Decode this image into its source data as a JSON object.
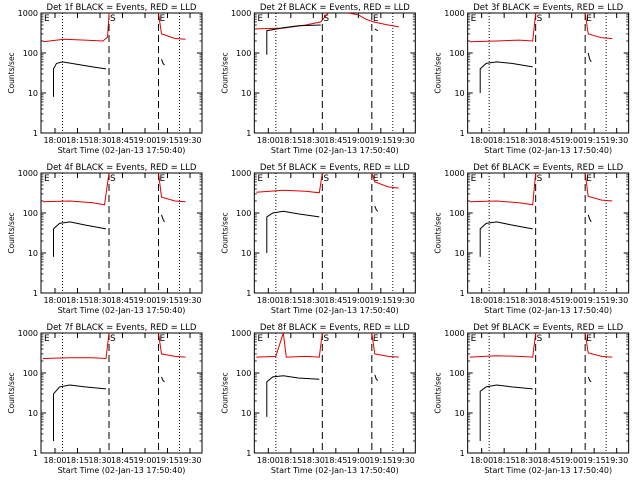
{
  "page": {
    "title": ""
  },
  "colors": {
    "events": "#000000",
    "lld": "#e00000",
    "axis": "#000000",
    "background": "#ffffff"
  },
  "common": {
    "ylabel": "Counts/sec",
    "xlabel": "Start Time (02-Jan-13 17:50:40)",
    "x_ticks": [
      "18:00",
      "18:15",
      "18:30",
      "18:45",
      "19:00",
      "19:15",
      "19:30"
    ],
    "y_ticks": [
      "1",
      "10",
      "100",
      "1000"
    ],
    "y_scale": "log",
    "ylim": [
      1,
      1000
    ],
    "xlim_minutes": [
      "17:50:40",
      "19:38:00"
    ],
    "markers": [
      "E",
      "S",
      "E"
    ]
  },
  "chart_data": [
    {
      "type": "line",
      "title": "Det 1f BLACK = Events, RED = LLD",
      "series": [
        {
          "color": "red",
          "segments": [
            [
              [
                "17:52",
                190
              ],
              [
                "18:06",
                220
              ],
              [
                "18:20",
                210
              ],
              [
                "18:32",
                200
              ],
              [
                "18:35",
                250
              ],
              [
                "18:36",
                900
              ],
              [
                "18:36",
                1000
              ]
            ],
            [
              [
                "19:09",
                1000
              ],
              [
                "19:11",
                300
              ],
              [
                "19:20",
                230
              ],
              [
                "19:27",
                220
              ]
            ]
          ]
        },
        {
          "color": "black",
          "segments": [
            [
              [
                "17:59",
                8
              ],
              [
                "17:59",
                40
              ],
              [
                "18:01",
                55
              ],
              [
                "18:05",
                60
              ],
              [
                "18:15",
                52
              ],
              [
                "18:25",
                45
              ],
              [
                "18:34",
                40
              ]
            ],
            [
              [
                "19:11",
                70
              ],
              [
                "19:12",
                55
              ],
              [
                "19:13",
                50
              ]
            ]
          ]
        }
      ]
    },
    {
      "type": "line",
      "title": "Det 2f BLACK = Events, RED = LLD",
      "series": [
        {
          "color": "red",
          "segments": [
            [
              [
                "17:52",
                400
              ],
              [
                "18:10",
                420
              ],
              [
                "18:25",
                500
              ],
              [
                "18:35",
                600
              ],
              [
                "18:40",
                1000
              ]
            ],
            [
              [
                "18:53",
                1000
              ],
              [
                "19:00",
                900
              ],
              [
                "19:05",
                700
              ],
              [
                "19:10",
                600
              ],
              [
                "19:20",
                500
              ],
              [
                "19:27",
                450
              ]
            ]
          ]
        },
        {
          "color": "black",
          "segments": [
            [
              [
                "17:59",
                90
              ],
              [
                "17:59",
                360
              ],
              [
                "18:10",
                430
              ],
              [
                "18:20",
                480
              ],
              [
                "18:35",
                500
              ]
            ],
            [
              [
                "19:11",
                400
              ],
              [
                "19:12",
                380
              ],
              [
                "19:13",
                360
              ]
            ]
          ]
        }
      ]
    },
    {
      "type": "line",
      "title": "Det 3f BLACK = Events, RED = LLD",
      "series": [
        {
          "color": "red",
          "segments": [
            [
              [
                "17:52",
                190
              ],
              [
                "18:10",
                200
              ],
              [
                "18:25",
                210
              ],
              [
                "18:34",
                200
              ],
              [
                "18:36",
                1000
              ]
            ],
            [
              [
                "19:09",
                1000
              ],
              [
                "19:11",
                300
              ],
              [
                "19:20",
                240
              ],
              [
                "19:27",
                230
              ]
            ]
          ]
        },
        {
          "color": "black",
          "segments": [
            [
              [
                "17:59",
                10
              ],
              [
                "17:59",
                40
              ],
              [
                "18:03",
                55
              ],
              [
                "18:10",
                60
              ],
              [
                "18:20",
                55
              ],
              [
                "18:34",
                45
              ]
            ],
            [
              [
                "19:11",
                100
              ],
              [
                "19:12",
                70
              ],
              [
                "19:13",
                60
              ]
            ]
          ]
        }
      ]
    },
    {
      "type": "line",
      "title": "Det 4f BLACK = Events, RED = LLD",
      "series": [
        {
          "color": "red",
          "segments": [
            [
              [
                "17:52",
                190
              ],
              [
                "18:10",
                200
              ],
              [
                "18:25",
                180
              ],
              [
                "18:33",
                160
              ],
              [
                "18:36",
                1000
              ]
            ],
            [
              [
                "19:09",
                1000
              ],
              [
                "19:11",
                250
              ],
              [
                "19:20",
                200
              ],
              [
                "19:27",
                190
              ]
            ]
          ]
        },
        {
          "color": "black",
          "segments": [
            [
              [
                "17:59",
                8
              ],
              [
                "17:59",
                40
              ],
              [
                "18:03",
                55
              ],
              [
                "18:10",
                60
              ],
              [
                "18:20",
                50
              ],
              [
                "18:34",
                40
              ]
            ],
            [
              [
                "19:11",
                90
              ],
              [
                "19:12",
                70
              ],
              [
                "19:13",
                60
              ]
            ]
          ]
        }
      ]
    },
    {
      "type": "line",
      "title": "Det 5f BLACK = Events, RED = LLD",
      "series": [
        {
          "color": "red",
          "segments": [
            [
              [
                "17:52",
                330
              ],
              [
                "18:10",
                370
              ],
              [
                "18:25",
                350
              ],
              [
                "18:34",
                320
              ],
              [
                "18:36",
                1000
              ]
            ],
            [
              [
                "19:09",
                1000
              ],
              [
                "19:11",
                600
              ],
              [
                "19:20",
                450
              ],
              [
                "19:27",
                420
              ]
            ]
          ]
        },
        {
          "color": "black",
          "segments": [
            [
              [
                "17:59",
                10
              ],
              [
                "17:59",
                80
              ],
              [
                "18:03",
                100
              ],
              [
                "18:10",
                110
              ],
              [
                "18:20",
                95
              ],
              [
                "18:34",
                80
              ]
            ],
            [
              [
                "19:11",
                150
              ],
              [
                "19:12",
                120
              ],
              [
                "19:13",
                110
              ]
            ]
          ]
        }
      ]
    },
    {
      "type": "line",
      "title": "Det 6f BLACK = Events, RED = LLD",
      "series": [
        {
          "color": "red",
          "segments": [
            [
              [
                "17:52",
                190
              ],
              [
                "18:10",
                200
              ],
              [
                "18:25",
                180
              ],
              [
                "18:34",
                160
              ],
              [
                "18:36",
                1000
              ]
            ],
            [
              [
                "19:09",
                1000
              ],
              [
                "19:11",
                260
              ],
              [
                "19:20",
                210
              ],
              [
                "19:27",
                200
              ]
            ]
          ]
        },
        {
          "color": "black",
          "segments": [
            [
              [
                "17:59",
                8
              ],
              [
                "17:59",
                40
              ],
              [
                "18:03",
                55
              ],
              [
                "18:10",
                60
              ],
              [
                "18:20",
                50
              ],
              [
                "18:34",
                40
              ]
            ],
            [
              [
                "19:11",
                90
              ],
              [
                "19:12",
                70
              ],
              [
                "19:13",
                60
              ]
            ]
          ]
        }
      ]
    },
    {
      "type": "line",
      "title": "Det 7f BLACK = Events, RED = LLD",
      "series": [
        {
          "color": "red",
          "segments": [
            [
              [
                "17:52",
                230
              ],
              [
                "18:10",
                240
              ],
              [
                "18:25",
                240
              ],
              [
                "18:34",
                230
              ],
              [
                "18:36",
                1000
              ]
            ],
            [
              [
                "19:09",
                1000
              ],
              [
                "19:11",
                300
              ],
              [
                "19:20",
                260
              ],
              [
                "19:27",
                250
              ]
            ]
          ]
        },
        {
          "color": "black",
          "segments": [
            [
              [
                "17:59",
                2
              ],
              [
                "17:59",
                30
              ],
              [
                "18:03",
                45
              ],
              [
                "18:10",
                50
              ],
              [
                "18:20",
                45
              ],
              [
                "18:34",
                40
              ]
            ],
            [
              [
                "19:11",
                80
              ],
              [
                "19:12",
                65
              ],
              [
                "19:13",
                60
              ]
            ]
          ]
        }
      ]
    },
    {
      "type": "line",
      "title": "Det 8f BLACK = Events, RED = LLD",
      "series": [
        {
          "color": "red",
          "segments": [
            [
              [
                "17:52",
                250
              ],
              [
                "18:05",
                260
              ],
              [
                "18:10",
                1000
              ],
              [
                "18:12",
                250
              ],
              [
                "18:25",
                260
              ],
              [
                "18:34",
                250
              ],
              [
                "18:36",
                1000
              ]
            ],
            [
              [
                "19:09",
                1000
              ],
              [
                "19:11",
                300
              ],
              [
                "19:20",
                260
              ],
              [
                "19:27",
                250
              ]
            ]
          ]
        },
        {
          "color": "black",
          "segments": [
            [
              [
                "17:59",
                8
              ],
              [
                "17:59",
                60
              ],
              [
                "18:03",
                80
              ],
              [
                "18:10",
                85
              ],
              [
                "18:20",
                75
              ],
              [
                "18:34",
                70
              ]
            ],
            [
              [
                "19:11",
                90
              ],
              [
                "19:12",
                70
              ],
              [
                "19:13",
                65
              ]
            ]
          ]
        }
      ]
    },
    {
      "type": "line",
      "title": "Det 9f BLACK = Events, RED = LLD",
      "series": [
        {
          "color": "red",
          "segments": [
            [
              [
                "17:52",
                250
              ],
              [
                "18:10",
                270
              ],
              [
                "18:25",
                260
              ],
              [
                "18:34",
                250
              ],
              [
                "18:36",
                1000
              ]
            ],
            [
              [
                "19:09",
                1000
              ],
              [
                "19:11",
                320
              ],
              [
                "19:20",
                260
              ],
              [
                "19:27",
                250
              ]
            ]
          ]
        },
        {
          "color": "black",
          "segments": [
            [
              [
                "17:59",
                2
              ],
              [
                "17:59",
                35
              ],
              [
                "18:03",
                45
              ],
              [
                "18:10",
                50
              ],
              [
                "18:20",
                45
              ],
              [
                "18:34",
                40
              ]
            ],
            [
              [
                "19:11",
                80
              ],
              [
                "19:12",
                65
              ],
              [
                "19:13",
                60
              ]
            ]
          ]
        }
      ]
    }
  ]
}
